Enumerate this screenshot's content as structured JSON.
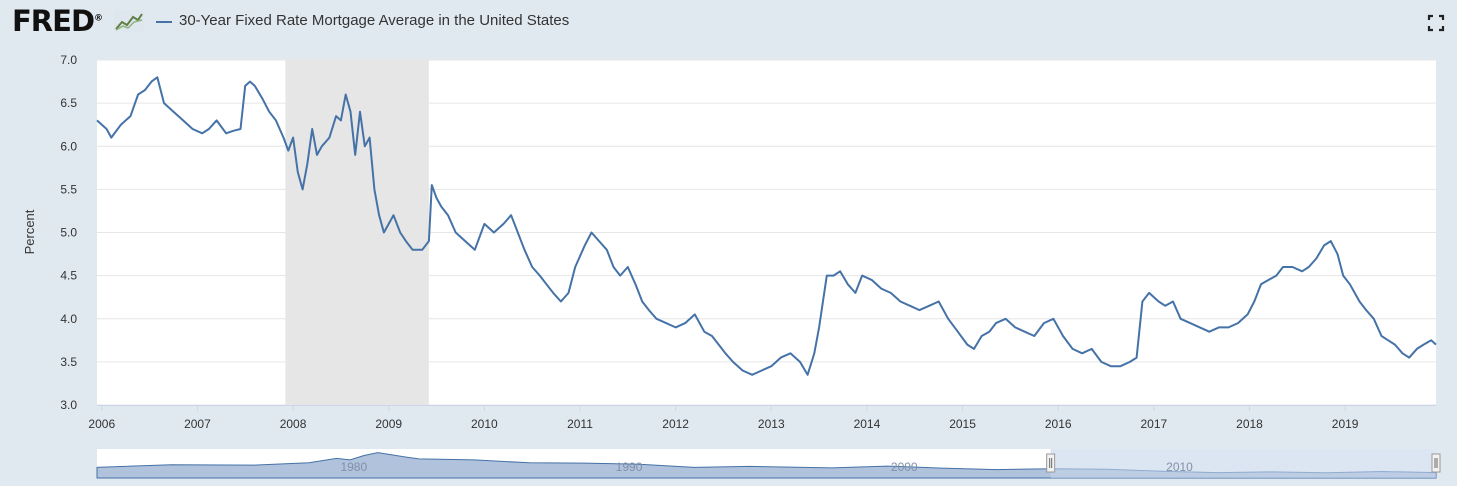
{
  "header": {
    "logo_text": "FRED",
    "logo_mark": "®",
    "logo_icon": "line-graph-icon",
    "title": "30-Year Fixed Rate Mortgage Average in the United States",
    "fullscreen_icon": "fullscreen-icon"
  },
  "colors": {
    "series": "#4572a7",
    "recession": "#e6e6e6",
    "background": "#e1e9f0",
    "plot_bg": "#ffffff",
    "navigator_fill": "#6f8fbf",
    "navigator_mask": "#c5d3ea"
  },
  "chart_data": {
    "type": "line",
    "title": "30-Year Fixed Rate Mortgage Average in the United States",
    "xlabel": "",
    "ylabel": "Percent",
    "ylim": [
      3.0,
      7.0
    ],
    "xlim": [
      2005.95,
      2019.95
    ],
    "grid": true,
    "y_ticks": [
      "7.0",
      "6.5",
      "6.0",
      "5.5",
      "5.0",
      "4.5",
      "4.0",
      "3.5",
      "3.0"
    ],
    "x_ticks": [
      "2006",
      "2007",
      "2008",
      "2009",
      "2010",
      "2011",
      "2012",
      "2013",
      "2014",
      "2015",
      "2016",
      "2017",
      "2018",
      "2019"
    ],
    "recessions": [
      [
        2007.92,
        2009.42
      ]
    ],
    "series": [
      {
        "name": "30-Year Fixed Rate Mortgage Average in the United States",
        "x": [
          2005.95,
          2006.05,
          2006.1,
          2006.2,
          2006.3,
          2006.38,
          2006.45,
          2006.52,
          2006.58,
          2006.65,
          2006.75,
          2006.85,
          2006.95,
          2007.05,
          2007.12,
          2007.2,
          2007.3,
          2007.38,
          2007.45,
          2007.5,
          2007.55,
          2007.6,
          2007.68,
          2007.75,
          2007.82,
          2007.9,
          2007.95,
          2008.0,
          2008.05,
          2008.1,
          2008.15,
          2008.2,
          2008.25,
          2008.3,
          2008.38,
          2008.45,
          2008.5,
          2008.55,
          2008.6,
          2008.65,
          2008.7,
          2008.75,
          2008.8,
          2008.85,
          2008.9,
          2008.95,
          2009.0,
          2009.05,
          2009.12,
          2009.18,
          2009.25,
          2009.3,
          2009.35,
          2009.42,
          2009.45,
          2009.5,
          2009.55,
          2009.62,
          2009.7,
          2009.8,
          2009.9,
          2010.0,
          2010.1,
          2010.2,
          2010.28,
          2010.35,
          2010.42,
          2010.5,
          2010.58,
          2010.65,
          2010.72,
          2010.8,
          2010.88,
          2010.95,
          2011.05,
          2011.12,
          2011.2,
          2011.28,
          2011.35,
          2011.42,
          2011.5,
          2011.58,
          2011.65,
          2011.72,
          2011.8,
          2011.9,
          2012.0,
          2012.1,
          2012.2,
          2012.3,
          2012.38,
          2012.45,
          2012.52,
          2012.6,
          2012.7,
          2012.8,
          2012.9,
          2013.0,
          2013.1,
          2013.2,
          2013.3,
          2013.38,
          2013.45,
          2013.5,
          2013.58,
          2013.65,
          2013.72,
          2013.8,
          2013.88,
          2013.95,
          2014.05,
          2014.15,
          2014.25,
          2014.35,
          2014.45,
          2014.55,
          2014.65,
          2014.75,
          2014.85,
          2014.95,
          2015.05,
          2015.12,
          2015.2,
          2015.28,
          2015.35,
          2015.45,
          2015.55,
          2015.65,
          2015.75,
          2015.85,
          2015.95,
          2016.05,
          2016.15,
          2016.25,
          2016.35,
          2016.45,
          2016.55,
          2016.65,
          2016.75,
          2016.82,
          2016.88,
          2016.95,
          2017.05,
          2017.12,
          2017.2,
          2017.28,
          2017.38,
          2017.48,
          2017.58,
          2017.68,
          2017.78,
          2017.88,
          2017.98,
          2018.05,
          2018.12,
          2018.2,
          2018.28,
          2018.35,
          2018.45,
          2018.55,
          2018.62,
          2018.7,
          2018.78,
          2018.85,
          2018.92,
          2018.98,
          2019.05,
          2019.15,
          2019.22,
          2019.3,
          2019.38,
          2019.45,
          2019.52,
          2019.6,
          2019.67,
          2019.75,
          2019.82,
          2019.9,
          2019.95
        ],
        "y": [
          6.3,
          6.2,
          6.1,
          6.25,
          6.35,
          6.6,
          6.65,
          6.75,
          6.8,
          6.5,
          6.4,
          6.3,
          6.2,
          6.15,
          6.2,
          6.3,
          6.15,
          6.18,
          6.2,
          6.7,
          6.75,
          6.7,
          6.55,
          6.4,
          6.3,
          6.1,
          5.95,
          6.1,
          5.7,
          5.5,
          5.8,
          6.2,
          5.9,
          6.0,
          6.1,
          6.35,
          6.3,
          6.6,
          6.4,
          5.9,
          6.4,
          6.0,
          6.1,
          5.5,
          5.2,
          5.0,
          5.1,
          5.2,
          5.0,
          4.9,
          4.8,
          4.8,
          4.8,
          4.9,
          5.55,
          5.4,
          5.3,
          5.2,
          5.0,
          4.9,
          4.8,
          5.1,
          5.0,
          5.1,
          5.2,
          5.0,
          4.8,
          4.6,
          4.5,
          4.4,
          4.3,
          4.2,
          4.3,
          4.6,
          4.85,
          5.0,
          4.9,
          4.8,
          4.6,
          4.5,
          4.6,
          4.4,
          4.2,
          4.1,
          4.0,
          3.95,
          3.9,
          3.95,
          4.05,
          3.85,
          3.8,
          3.7,
          3.6,
          3.5,
          3.4,
          3.35,
          3.4,
          3.45,
          3.55,
          3.6,
          3.5,
          3.35,
          3.6,
          3.9,
          4.5,
          4.5,
          4.55,
          4.4,
          4.3,
          4.5,
          4.45,
          4.35,
          4.3,
          4.2,
          4.15,
          4.1,
          4.15,
          4.2,
          4.0,
          3.85,
          3.7,
          3.65,
          3.8,
          3.85,
          3.95,
          4.0,
          3.9,
          3.85,
          3.8,
          3.95,
          4.0,
          3.8,
          3.65,
          3.6,
          3.65,
          3.5,
          3.45,
          3.45,
          3.5,
          3.55,
          4.2,
          4.3,
          4.2,
          4.15,
          4.2,
          4.0,
          3.95,
          3.9,
          3.85,
          3.9,
          3.9,
          3.95,
          4.05,
          4.2,
          4.4,
          4.45,
          4.5,
          4.6,
          4.6,
          4.55,
          4.6,
          4.7,
          4.85,
          4.9,
          4.75,
          4.5,
          4.4,
          4.2,
          4.1,
          4.0,
          3.8,
          3.75,
          3.7,
          3.6,
          3.55,
          3.65,
          3.7,
          3.75,
          3.7
        ]
      }
    ],
    "navigator": {
      "labels": [
        "1980",
        "1990",
        "2000",
        "2010"
      ],
      "x": [
        1971.3,
        1974,
        1977,
        1979,
        1980,
        1980.5,
        1981,
        1981.5,
        1982,
        1982.5,
        1983,
        1985,
        1987,
        1989,
        1991,
        1993,
        1995,
        1998,
        2000,
        2002,
        2004,
        2006,
        2008,
        2010,
        2012,
        2014,
        2016,
        2018,
        2019.95
      ],
      "y": [
        7.3,
        9.2,
        8.9,
        10.5,
        13.5,
        12.5,
        15.5,
        17.5,
        16.0,
        14.5,
        13.2,
        12.5,
        10.5,
        10.3,
        9.5,
        7.3,
        8.0,
        7.0,
        8.2,
        6.8,
        5.8,
        6.4,
        6.0,
        4.7,
        3.7,
        4.2,
        3.6,
        4.5,
        3.7
      ],
      "xlim": [
        1971.3,
        2019.95
      ],
      "ylim": [
        0,
        20
      ],
      "selected_range": [
        2005.95,
        2019.95
      ]
    }
  }
}
